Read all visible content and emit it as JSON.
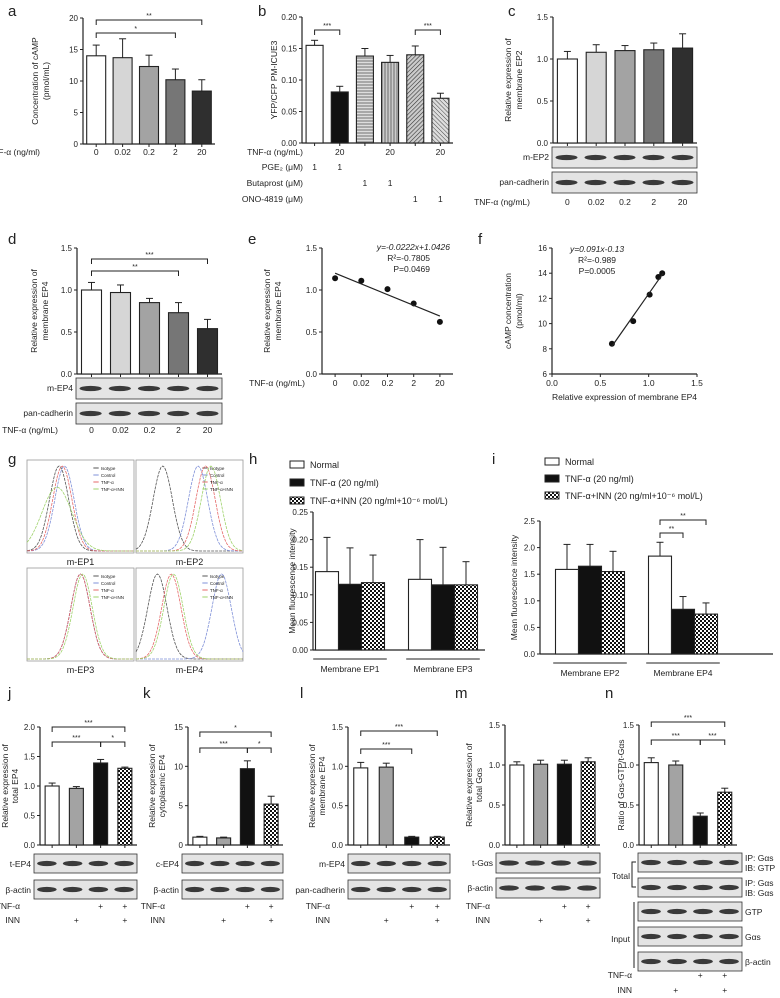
{
  "panel_letters": [
    "a",
    "b",
    "c",
    "d",
    "e",
    "f",
    "g",
    "h",
    "i",
    "j",
    "k",
    "l",
    "m",
    "n"
  ],
  "colors": {
    "white": "#ffffff",
    "light": "#d6d6d6",
    "mid": "#a3a3a3",
    "dark": "#767676",
    "darker": "#2f2f2f",
    "black": "#111111",
    "blot_bg": "#e4e4e4",
    "isotype": "#555555",
    "control": "#7f90d8",
    "tnf": "#e66a6a",
    "tnf_inn": "#9fd36b"
  },
  "chart_data": [
    {
      "panel": "a",
      "type": "bar",
      "ylabel": [
        "Concentration of cAMP",
        "(pmol/mL)"
      ],
      "ylim": [
        0,
        20
      ],
      "yticks": [
        "0",
        "5",
        "10",
        "15",
        "20"
      ],
      "xlabel": "TNF-α (ng/ml)",
      "categories": [
        "0",
        "0.02",
        "0.2",
        "2",
        "20"
      ],
      "values": [
        14.0,
        13.7,
        12.3,
        10.2,
        8.4
      ],
      "errors": [
        1.7,
        3.0,
        1.8,
        1.7,
        1.8
      ],
      "fills": [
        "white",
        "light",
        "mid",
        "dark",
        "darker"
      ],
      "significance": [
        {
          "from": 0,
          "to": 3,
          "label": "*"
        },
        {
          "from": 0,
          "to": 4,
          "label": "**"
        }
      ]
    },
    {
      "panel": "b",
      "type": "bar",
      "ylabel": [
        "YFP/CFP PM-ICUE3"
      ],
      "ylim": [
        0,
        0.2
      ],
      "yticks": [
        "0.00",
        "0.05",
        "0.10",
        "0.15",
        "0.20"
      ],
      "values": [
        0.155,
        0.081,
        0.138,
        0.128,
        0.14,
        0.071
      ],
      "errors": [
        0.008,
        0.009,
        0.012,
        0.011,
        0.014,
        0.008
      ],
      "fills": [
        "white",
        "black",
        "pattern:hstripe",
        "pattern:vstripe",
        "pattern:diag",
        "pattern:diag2"
      ],
      "significance": [
        {
          "from": 0,
          "to": 1,
          "label": "***"
        },
        {
          "from": 4,
          "to": 5,
          "label": "***"
        }
      ],
      "treatments": [
        {
          "label": "TNF-α (ng/mL)",
          "values": [
            "",
            "20",
            "",
            "20",
            "",
            "20"
          ]
        },
        {
          "label": "PGE₂ (μM)",
          "values": [
            "1",
            "1",
            "",
            "",
            "",
            ""
          ]
        },
        {
          "label": "Butaprost (μM)",
          "values": [
            "",
            "",
            "1",
            "1",
            "",
            ""
          ]
        },
        {
          "label": "ONO-4819 (μM)",
          "values": [
            "",
            "",
            "",
            "",
            "1",
            "1"
          ]
        }
      ]
    },
    {
      "panel": "c",
      "type": "bar",
      "ylabel": [
        "Relative expression of",
        "membrane EP2"
      ],
      "ylim": [
        0,
        1.5
      ],
      "yticks": [
        "0.0",
        "0.5",
        "1.0",
        "1.5"
      ],
      "xlabel": "TNF-α (ng/mL)",
      "categories": [
        "0",
        "0.02",
        "0.2",
        "2",
        "20"
      ],
      "values": [
        1.0,
        1.08,
        1.1,
        1.11,
        1.13
      ],
      "errors": [
        0.09,
        0.09,
        0.06,
        0.08,
        0.17
      ],
      "fills": [
        "white",
        "light",
        "mid",
        "dark",
        "darker"
      ],
      "significance": [],
      "blots": [
        "m-EP2",
        "pan-cadherin"
      ]
    },
    {
      "panel": "d",
      "type": "bar",
      "ylabel": [
        "Relative expression of",
        "membrane EP4"
      ],
      "ylim": [
        0,
        1.5
      ],
      "yticks": [
        "0.0",
        "0.5",
        "1.0",
        "1.5"
      ],
      "xlabel": "TNF-α (ng/mL)",
      "categories": [
        "0",
        "0.02",
        "0.2",
        "2",
        "20"
      ],
      "values": [
        1.0,
        0.97,
        0.85,
        0.73,
        0.54
      ],
      "errors": [
        0.09,
        0.09,
        0.05,
        0.12,
        0.11
      ],
      "fills": [
        "white",
        "light",
        "mid",
        "dark",
        "darker"
      ],
      "significance": [
        {
          "from": 0,
          "to": 4,
          "label": "***"
        },
        {
          "from": 0,
          "to": 3,
          "label": "**"
        }
      ],
      "blots": [
        "m-EP4",
        "pan-cadherin"
      ]
    },
    {
      "panel": "e",
      "type": "scatter",
      "ylabel": [
        "Relative expression of",
        "membrane EP4"
      ],
      "ylim": [
        0,
        1.5
      ],
      "yticks": [
        "0.0",
        "0.5",
        "1.0",
        "1.5"
      ],
      "xlabel": "TNF-α (ng/mL)",
      "categories": [
        "0",
        "0.02",
        "0.2",
        "2",
        "20"
      ],
      "values": [
        1.14,
        1.11,
        1.01,
        0.84,
        0.62
      ],
      "fit_line": {
        "start": 1.2,
        "end": 0.69
      },
      "annotation": {
        "equation": "y=-0.0222x+1.0426",
        "r2": "R²=-0.7805",
        "p": "P=0.0469"
      }
    },
    {
      "panel": "f",
      "type": "scatter",
      "ylabel": [
        "cAMP concentration",
        "(pmol/ml)"
      ],
      "xlabel": "Relative expression of membrane EP4",
      "xlim": [
        0,
        1.5
      ],
      "xticks": [
        "0.0",
        "0.5",
        "1.0",
        "1.5"
      ],
      "ylim": [
        6,
        16
      ],
      "yticks": [
        "6",
        "8",
        "10",
        "12",
        "14",
        "16"
      ],
      "points": [
        [
          0.62,
          8.4
        ],
        [
          0.84,
          10.2
        ],
        [
          1.01,
          12.3
        ],
        [
          1.1,
          13.7
        ],
        [
          1.14,
          14.0
        ]
      ],
      "fit_line": {
        "x": [
          0.62,
          1.15
        ],
        "y": [
          8.2,
          14.0
        ]
      },
      "annotation": {
        "equation": "y=0.091x-0.13",
        "r2": "R²=-0.989",
        "p": "P=0.0005"
      }
    },
    {
      "panel": "h",
      "type": "bar",
      "ylabel": [
        "Mean fluorescence intensity"
      ],
      "ylim": [
        0,
        0.25
      ],
      "yticks": [
        "0.00",
        "0.05",
        "0.10",
        "0.15",
        "0.20",
        "0.25"
      ],
      "groups": [
        "Membrane EP1",
        "Membrane EP3"
      ],
      "series": [
        {
          "name": "Normal",
          "fill": "white",
          "values": [
            0.142,
            0.128
          ],
          "errors": [
            0.062,
            0.072
          ]
        },
        {
          "name": "TNF-α (20 ng/ml)",
          "fill": "black",
          "values": [
            0.119,
            0.118
          ],
          "errors": [
            0.066,
            0.068
          ]
        },
        {
          "name": "TNF-α+INN (20 ng/ml+10⁻⁶ mol/L)",
          "fill": "pattern:check",
          "values": [
            0.122,
            0.118
          ],
          "errors": [
            0.05,
            0.042
          ]
        }
      ],
      "significance": []
    },
    {
      "panel": "i",
      "type": "bar",
      "ylabel": [
        "Mean fluorescence intensity"
      ],
      "ylim": [
        0,
        2.5
      ],
      "yticks": [
        "0.0",
        "0.5",
        "1.0",
        "1.5",
        "2.0",
        "2.5"
      ],
      "groups": [
        "Membrane EP2",
        "Membrane EP4"
      ],
      "series": [
        {
          "name": "Normal",
          "fill": "white",
          "values": [
            1.59,
            1.84
          ],
          "errors": [
            0.47,
            0.26
          ]
        },
        {
          "name": "TNF-α (20 ng/ml)",
          "fill": "black",
          "values": [
            1.65,
            0.84
          ],
          "errors": [
            0.41,
            0.24
          ]
        },
        {
          "name": "TNF-α+INN (20 ng/ml+10⁻⁶ mol/L)",
          "fill": "pattern:check",
          "values": [
            1.55,
            0.75
          ],
          "errors": [
            0.38,
            0.21
          ]
        }
      ],
      "significance": [
        {
          "from": 3,
          "to": 4,
          "label": "**"
        },
        {
          "from": 3,
          "to": 5,
          "label": "**"
        }
      ]
    },
    {
      "panel": "j",
      "type": "bar",
      "ylabel": [
        "Relative expression of",
        "total EP4"
      ],
      "ylim": [
        0,
        2
      ],
      "yticks": [
        "0.0",
        "0.5",
        "1.0",
        "1.5",
        "2.0"
      ],
      "values": [
        1.0,
        0.96,
        1.39,
        1.3
      ],
      "errors": [
        0.05,
        0.03,
        0.06,
        0.02
      ],
      "fills": [
        "white",
        "mid",
        "black",
        "pattern:check"
      ],
      "significance": [
        {
          "from": 0,
          "to": 3,
          "label": "***"
        },
        {
          "from": 0,
          "to": 2,
          "label": "***"
        },
        {
          "from": 2,
          "to": 3,
          "label": "*"
        }
      ],
      "blots": [
        "t-EP4",
        "β-actin"
      ],
      "treatments": [
        {
          "label": "TNF-α",
          "values": [
            "",
            "",
            "+",
            "+"
          ]
        },
        {
          "label": "INN",
          "values": [
            "",
            "+",
            "",
            "+"
          ]
        }
      ]
    },
    {
      "panel": "k",
      "type": "bar",
      "ylabel": [
        "Relative expression of",
        "cytoplasmic EP4"
      ],
      "ylim": [
        0,
        15
      ],
      "yticks": [
        "0",
        "5",
        "10",
        "15"
      ],
      "values": [
        1.0,
        0.9,
        9.7,
        5.2
      ],
      "errors": [
        0.1,
        0.1,
        1.0,
        1.0
      ],
      "fills": [
        "white",
        "mid",
        "black",
        "pattern:check"
      ],
      "significance": [
        {
          "from": 0,
          "to": 3,
          "label": "*"
        },
        {
          "from": 0,
          "to": 2,
          "label": "***"
        },
        {
          "from": 2,
          "to": 3,
          "label": "*"
        }
      ],
      "blots": [
        "c-EP4",
        "β-actin"
      ],
      "treatments": [
        {
          "label": "TNF-α",
          "values": [
            "",
            "",
            "+",
            "+"
          ]
        },
        {
          "label": "INN",
          "values": [
            "",
            "+",
            "",
            "+"
          ]
        }
      ]
    },
    {
      "panel": "l",
      "type": "bar",
      "ylabel": [
        "Relative expression of",
        "membrane EP4"
      ],
      "ylim": [
        0,
        1.5
      ],
      "yticks": [
        "0.0",
        "0.5",
        "1.0",
        "1.5"
      ],
      "values": [
        0.98,
        0.99,
        0.1,
        0.1
      ],
      "errors": [
        0.07,
        0.05,
        0.01,
        0.01
      ],
      "fills": [
        "white",
        "mid",
        "black",
        "pattern:check"
      ],
      "significance": [
        {
          "from": 0,
          "to": 3,
          "label": "***"
        },
        {
          "from": 0,
          "to": 2,
          "label": "***"
        }
      ],
      "blots": [
        "m-EP4",
        "pan-cadherin"
      ],
      "treatments": [
        {
          "label": "TNF-α",
          "values": [
            "",
            "",
            "+",
            "+"
          ]
        },
        {
          "label": "INN",
          "values": [
            "",
            "+",
            "",
            "+"
          ]
        }
      ]
    },
    {
      "panel": "m",
      "type": "bar",
      "ylabel": [
        "Relative expression of",
        "total Gαs"
      ],
      "ylim": [
        0,
        1.5
      ],
      "yticks": [
        "0.0",
        "0.5",
        "1.0",
        "1.5"
      ],
      "values": [
        1.0,
        1.01,
        1.01,
        1.04
      ],
      "errors": [
        0.04,
        0.05,
        0.05,
        0.05
      ],
      "fills": [
        "white",
        "mid",
        "black",
        "pattern:check"
      ],
      "significance": [],
      "blots": [
        "t-Gαs",
        "β-actin"
      ],
      "treatments": [
        {
          "label": "TNF-α",
          "values": [
            "",
            "",
            "+",
            "+"
          ]
        },
        {
          "label": "INN",
          "values": [
            "",
            "+",
            "",
            "+"
          ]
        }
      ]
    },
    {
      "panel": "n",
      "type": "bar",
      "ylabel": [
        "Ratio of Gαs-GTP/t-Gαs"
      ],
      "ylim": [
        0,
        1.5
      ],
      "yticks": [
        "0.0",
        "0.5",
        "1.0",
        "1.5"
      ],
      "values": [
        1.03,
        1.0,
        0.36,
        0.66
      ],
      "errors": [
        0.06,
        0.05,
        0.04,
        0.05
      ],
      "fills": [
        "white",
        "mid",
        "black",
        "pattern:check"
      ],
      "significance": [
        {
          "from": 0,
          "to": 3,
          "label": "***"
        },
        {
          "from": 0,
          "to": 2,
          "label": "***"
        },
        {
          "from": 2,
          "to": 3,
          "label": "***"
        }
      ],
      "blots": [
        [
          "IP: Gαs",
          "IB: GTP"
        ],
        [
          "IP: Gαs",
          "IB: Gαs"
        ],
        "GTP",
        "Gαs",
        "β-actin"
      ],
      "blot_groups": [
        "Total",
        "Input"
      ],
      "treatments": [
        {
          "label": "TNF-α",
          "values": [
            "",
            "",
            "+",
            "+"
          ]
        },
        {
          "label": "INN",
          "values": [
            "",
            "+",
            "",
            "+"
          ]
        }
      ]
    }
  ],
  "flow_g": {
    "legend": [
      "Isotype",
      "Control",
      "TNF-α",
      "TNF-α+INN"
    ],
    "plots": [
      "m-EP1",
      "m-EP2",
      "m-EP3",
      "m-EP4"
    ]
  }
}
